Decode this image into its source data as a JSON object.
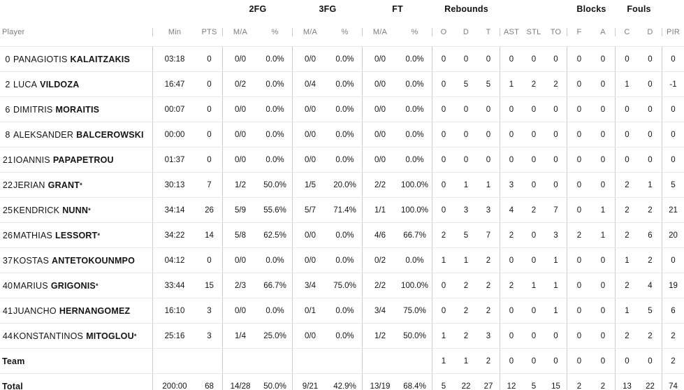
{
  "table": {
    "group_headers": {
      "fg2": "2FG",
      "fg3": "3FG",
      "ft": "FT",
      "rebounds": "Rebounds",
      "blocks": "Blocks",
      "fouls": "Fouls"
    },
    "column_headers": {
      "player": "Player",
      "min": "Min",
      "pts": "PTS",
      "ma": "M/A",
      "pct": "%",
      "reb_o": "O",
      "reb_d": "D",
      "reb_t": "T",
      "ast": "AST",
      "stl": "STL",
      "to": "TO",
      "blk_f": "F",
      "blk_a": "A",
      "foul_c": "C",
      "foul_d": "D",
      "pir": "PIR"
    },
    "rows": [
      {
        "type": "player",
        "number": "0",
        "first": "PANAGIOTIS",
        "last": "KALAITZAKIS",
        "starter": false,
        "min": "03:18",
        "pts": "0",
        "fg2_ma": "0/0",
        "fg2_pct": "0.0%",
        "fg3_ma": "0/0",
        "fg3_pct": "0.0%",
        "ft_ma": "0/0",
        "ft_pct": "0.0%",
        "reb_o": "0",
        "reb_d": "0",
        "reb_t": "0",
        "ast": "0",
        "stl": "0",
        "to": "0",
        "blk_f": "0",
        "blk_a": "0",
        "foul_c": "0",
        "foul_d": "0",
        "pir": "0"
      },
      {
        "type": "player",
        "number": "2",
        "first": "LUCA",
        "last": "VILDOZA",
        "starter": false,
        "min": "16:47",
        "pts": "0",
        "fg2_ma": "0/2",
        "fg2_pct": "0.0%",
        "fg3_ma": "0/4",
        "fg3_pct": "0.0%",
        "ft_ma": "0/0",
        "ft_pct": "0.0%",
        "reb_o": "0",
        "reb_d": "5",
        "reb_t": "5",
        "ast": "1",
        "stl": "2",
        "to": "2",
        "blk_f": "0",
        "blk_a": "0",
        "foul_c": "1",
        "foul_d": "0",
        "pir": "-1"
      },
      {
        "type": "player",
        "number": "6",
        "first": "DIMITRIS",
        "last": "MORAITIS",
        "starter": false,
        "min": "00:07",
        "pts": "0",
        "fg2_ma": "0/0",
        "fg2_pct": "0.0%",
        "fg3_ma": "0/0",
        "fg3_pct": "0.0%",
        "ft_ma": "0/0",
        "ft_pct": "0.0%",
        "reb_o": "0",
        "reb_d": "0",
        "reb_t": "0",
        "ast": "0",
        "stl": "0",
        "to": "0",
        "blk_f": "0",
        "blk_a": "0",
        "foul_c": "0",
        "foul_d": "0",
        "pir": "0"
      },
      {
        "type": "player",
        "number": "8",
        "first": "ALEKSANDER",
        "last": "BALCEROWSKI",
        "starter": false,
        "min": "00:00",
        "pts": "0",
        "fg2_ma": "0/0",
        "fg2_pct": "0.0%",
        "fg3_ma": "0/0",
        "fg3_pct": "0.0%",
        "ft_ma": "0/0",
        "ft_pct": "0.0%",
        "reb_o": "0",
        "reb_d": "0",
        "reb_t": "0",
        "ast": "0",
        "stl": "0",
        "to": "0",
        "blk_f": "0",
        "blk_a": "0",
        "foul_c": "0",
        "foul_d": "0",
        "pir": "0"
      },
      {
        "type": "player",
        "number": "21",
        "first": "IOANNIS",
        "last": "PAPAPETROU",
        "starter": false,
        "min": "01:37",
        "pts": "0",
        "fg2_ma": "0/0",
        "fg2_pct": "0.0%",
        "fg3_ma": "0/0",
        "fg3_pct": "0.0%",
        "ft_ma": "0/0",
        "ft_pct": "0.0%",
        "reb_o": "0",
        "reb_d": "0",
        "reb_t": "0",
        "ast": "0",
        "stl": "0",
        "to": "0",
        "blk_f": "0",
        "blk_a": "0",
        "foul_c": "0",
        "foul_d": "0",
        "pir": "0"
      },
      {
        "type": "player",
        "number": "22",
        "first": "JERIAN",
        "last": "GRANT",
        "starter": true,
        "min": "30:13",
        "pts": "7",
        "fg2_ma": "1/2",
        "fg2_pct": "50.0%",
        "fg3_ma": "1/5",
        "fg3_pct": "20.0%",
        "ft_ma": "2/2",
        "ft_pct": "100.0%",
        "reb_o": "0",
        "reb_d": "1",
        "reb_t": "1",
        "ast": "3",
        "stl": "0",
        "to": "0",
        "blk_f": "0",
        "blk_a": "0",
        "foul_c": "2",
        "foul_d": "1",
        "pir": "5"
      },
      {
        "type": "player",
        "number": "25",
        "first": "KENDRICK",
        "last": "NUNN",
        "starter": true,
        "min": "34:14",
        "pts": "26",
        "fg2_ma": "5/9",
        "fg2_pct": "55.6%",
        "fg3_ma": "5/7",
        "fg3_pct": "71.4%",
        "ft_ma": "1/1",
        "ft_pct": "100.0%",
        "reb_o": "0",
        "reb_d": "3",
        "reb_t": "3",
        "ast": "4",
        "stl": "2",
        "to": "7",
        "blk_f": "0",
        "blk_a": "1",
        "foul_c": "2",
        "foul_d": "2",
        "pir": "21"
      },
      {
        "type": "player",
        "number": "26",
        "first": "MATHIAS",
        "last": "LESSORT",
        "starter": true,
        "min": "34:22",
        "pts": "14",
        "fg2_ma": "5/8",
        "fg2_pct": "62.5%",
        "fg3_ma": "0/0",
        "fg3_pct": "0.0%",
        "ft_ma": "4/6",
        "ft_pct": "66.7%",
        "reb_o": "2",
        "reb_d": "5",
        "reb_t": "7",
        "ast": "2",
        "stl": "0",
        "to": "3",
        "blk_f": "2",
        "blk_a": "1",
        "foul_c": "2",
        "foul_d": "6",
        "pir": "20"
      },
      {
        "type": "player",
        "number": "37",
        "first": "KOSTAS",
        "last": "ANTETOKOUNMPO",
        "starter": false,
        "min": "04:12",
        "pts": "0",
        "fg2_ma": "0/0",
        "fg2_pct": "0.0%",
        "fg3_ma": "0/0",
        "fg3_pct": "0.0%",
        "ft_ma": "0/2",
        "ft_pct": "0.0%",
        "reb_o": "1",
        "reb_d": "1",
        "reb_t": "2",
        "ast": "0",
        "stl": "0",
        "to": "1",
        "blk_f": "0",
        "blk_a": "0",
        "foul_c": "1",
        "foul_d": "2",
        "pir": "0"
      },
      {
        "type": "player",
        "number": "40",
        "first": "MARIUS",
        "last": "GRIGONIS",
        "starter": true,
        "min": "33:44",
        "pts": "15",
        "fg2_ma": "2/3",
        "fg2_pct": "66.7%",
        "fg3_ma": "3/4",
        "fg3_pct": "75.0%",
        "ft_ma": "2/2",
        "ft_pct": "100.0%",
        "reb_o": "0",
        "reb_d": "2",
        "reb_t": "2",
        "ast": "2",
        "stl": "1",
        "to": "1",
        "blk_f": "0",
        "blk_a": "0",
        "foul_c": "2",
        "foul_d": "4",
        "pir": "19"
      },
      {
        "type": "player",
        "number": "41",
        "first": "JUANCHO",
        "last": "HERNANGOMEZ",
        "starter": false,
        "min": "16:10",
        "pts": "3",
        "fg2_ma": "0/0",
        "fg2_pct": "0.0%",
        "fg3_ma": "0/1",
        "fg3_pct": "0.0%",
        "ft_ma": "3/4",
        "ft_pct": "75.0%",
        "reb_o": "0",
        "reb_d": "2",
        "reb_t": "2",
        "ast": "0",
        "stl": "0",
        "to": "1",
        "blk_f": "0",
        "blk_a": "0",
        "foul_c": "1",
        "foul_d": "5",
        "pir": "6"
      },
      {
        "type": "player",
        "number": "44",
        "first": "KONSTANTINOS",
        "last": "MITOGLOU",
        "starter": true,
        "min": "25:16",
        "pts": "3",
        "fg2_ma": "1/4",
        "fg2_pct": "25.0%",
        "fg3_ma": "0/0",
        "fg3_pct": "0.0%",
        "ft_ma": "1/2",
        "ft_pct": "50.0%",
        "reb_o": "1",
        "reb_d": "2",
        "reb_t": "3",
        "ast": "0",
        "stl": "0",
        "to": "0",
        "blk_f": "0",
        "blk_a": "0",
        "foul_c": "2",
        "foul_d": "2",
        "pir": "2"
      },
      {
        "type": "team",
        "label": "Team",
        "min": "",
        "pts": "",
        "fg2_ma": "",
        "fg2_pct": "",
        "fg3_ma": "",
        "fg3_pct": "",
        "ft_ma": "",
        "ft_pct": "",
        "reb_o": "1",
        "reb_d": "1",
        "reb_t": "2",
        "ast": "0",
        "stl": "0",
        "to": "0",
        "blk_f": "0",
        "blk_a": "0",
        "foul_c": "0",
        "foul_d": "0",
        "pir": "2"
      },
      {
        "type": "total",
        "label": "Total",
        "min": "200:00",
        "pts": "68",
        "fg2_ma": "14/28",
        "fg2_pct": "50.0%",
        "fg3_ma": "9/21",
        "fg3_pct": "42.9%",
        "ft_ma": "13/19",
        "ft_pct": "68.4%",
        "reb_o": "5",
        "reb_d": "22",
        "reb_t": "27",
        "ast": "12",
        "stl": "5",
        "to": "15",
        "blk_f": "2",
        "blk_a": "2",
        "foul_c": "13",
        "foul_d": "22",
        "pir": "74"
      }
    ]
  }
}
